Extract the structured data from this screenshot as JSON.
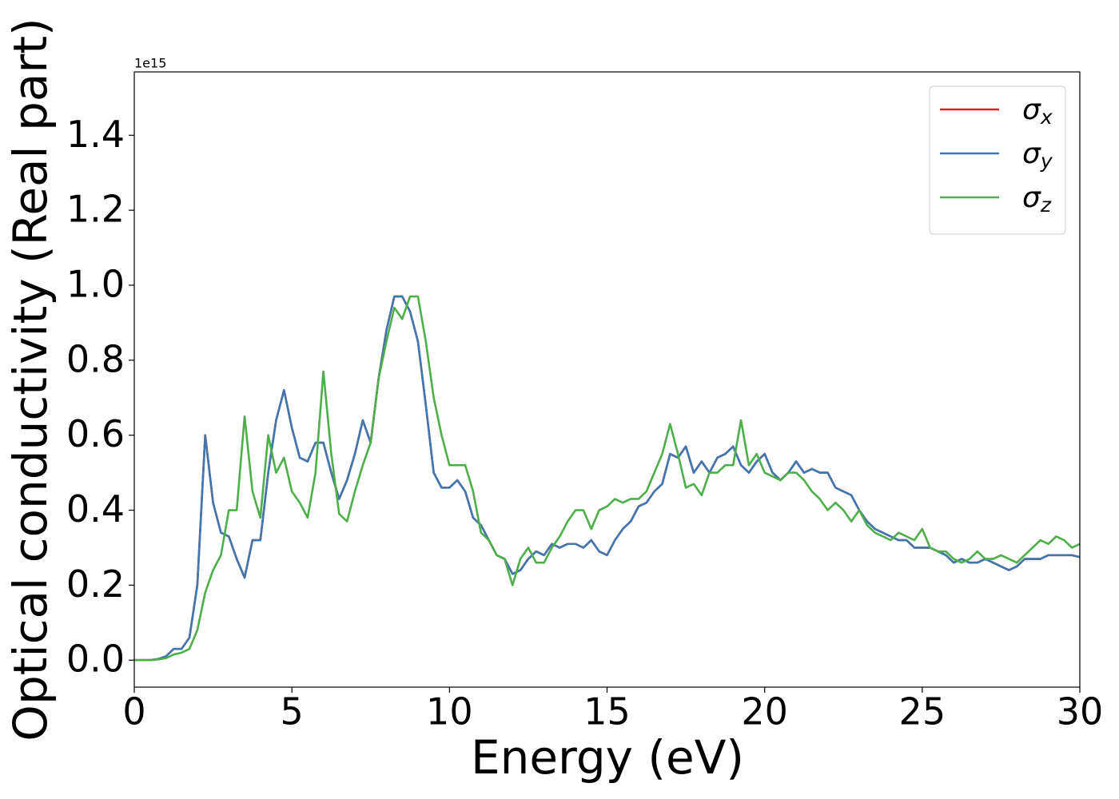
{
  "chart_data": {
    "type": "line",
    "xlabel": "Energy (eV)",
    "ylabel": "Optical conductivity (Real part)",
    "offset_label": "1e15",
    "x": [
      0,
      0.25,
      0.5,
      0.75,
      1,
      1.25,
      1.5,
      1.75,
      2,
      2.25,
      2.5,
      2.75,
      3,
      3.25,
      3.5,
      3.75,
      4,
      4.25,
      4.5,
      4.75,
      5,
      5.25,
      5.5,
      5.75,
      6,
      6.25,
      6.5,
      6.75,
      7,
      7.25,
      7.5,
      7.75,
      8,
      8.25,
      8.5,
      8.75,
      9,
      9.25,
      9.5,
      9.75,
      10,
      10.25,
      10.5,
      10.75,
      11,
      11.25,
      11.5,
      11.75,
      12,
      12.25,
      12.5,
      12.75,
      13,
      13.25,
      13.5,
      13.75,
      14,
      14.25,
      14.5,
      14.75,
      15,
      15.25,
      15.5,
      15.75,
      16,
      16.25,
      16.5,
      16.75,
      17,
      17.25,
      17.5,
      17.75,
      18,
      18.25,
      18.5,
      18.75,
      19,
      19.25,
      19.5,
      19.75,
      20,
      20.25,
      20.5,
      20.75,
      21,
      21.25,
      21.5,
      21.75,
      22,
      22.25,
      22.5,
      22.75,
      23,
      23.25,
      23.5,
      23.75,
      24,
      24.25,
      24.5,
      24.75,
      25,
      25.25,
      25.5,
      25.75,
      26,
      26.25,
      26.5,
      26.75,
      27,
      27.25,
      27.5,
      27.75,
      28,
      28.25,
      28.5,
      28.75,
      29,
      29.25,
      29.5,
      29.75,
      30
    ],
    "series": [
      {
        "name": "σx",
        "color": "#e41a1c",
        "values": [
          0,
          0,
          0,
          0.003,
          0.01,
          0.03,
          0.03,
          0.06,
          0.2,
          0.6,
          0.42,
          0.34,
          0.33,
          0.27,
          0.22,
          0.32,
          0.32,
          0.5,
          0.64,
          0.72,
          0.62,
          0.54,
          0.53,
          0.58,
          0.58,
          0.5,
          0.43,
          0.48,
          0.55,
          0.64,
          0.58,
          0.75,
          0.88,
          0.97,
          0.97,
          0.93,
          0.85,
          0.68,
          0.5,
          0.46,
          0.46,
          0.48,
          0.45,
          0.38,
          0.36,
          0.32,
          0.28,
          0.27,
          0.23,
          0.24,
          0.27,
          0.29,
          0.28,
          0.31,
          0.3,
          0.31,
          0.31,
          0.3,
          0.32,
          0.29,
          0.28,
          0.32,
          0.35,
          0.37,
          0.41,
          0.42,
          0.45,
          0.47,
          0.55,
          0.54,
          0.57,
          0.5,
          0.53,
          0.5,
          0.54,
          0.55,
          0.57,
          0.52,
          0.5,
          0.53,
          0.55,
          0.5,
          0.48,
          0.5,
          0.53,
          0.5,
          0.51,
          0.5,
          0.5,
          0.46,
          0.45,
          0.44,
          0.4,
          0.37,
          0.35,
          0.34,
          0.33,
          0.32,
          0.32,
          0.3,
          0.3,
          0.3,
          0.29,
          0.28,
          0.26,
          0.27,
          0.26,
          0.26,
          0.27,
          0.26,
          0.25,
          0.24,
          0.25,
          0.27,
          0.27,
          0.27,
          0.28,
          0.28,
          0.28,
          0.28,
          0.275
        ]
      },
      {
        "name": "σy",
        "color": "#3f77b0",
        "values": [
          0,
          0,
          0,
          0.003,
          0.01,
          0.03,
          0.03,
          0.06,
          0.2,
          0.6,
          0.42,
          0.34,
          0.33,
          0.27,
          0.22,
          0.32,
          0.32,
          0.5,
          0.64,
          0.72,
          0.62,
          0.54,
          0.53,
          0.58,
          0.58,
          0.5,
          0.43,
          0.48,
          0.55,
          0.64,
          0.58,
          0.75,
          0.88,
          0.97,
          0.97,
          0.93,
          0.85,
          0.68,
          0.5,
          0.46,
          0.46,
          0.48,
          0.45,
          0.38,
          0.36,
          0.32,
          0.28,
          0.27,
          0.23,
          0.24,
          0.27,
          0.29,
          0.28,
          0.31,
          0.3,
          0.31,
          0.31,
          0.3,
          0.32,
          0.29,
          0.28,
          0.32,
          0.35,
          0.37,
          0.41,
          0.42,
          0.45,
          0.47,
          0.55,
          0.54,
          0.57,
          0.5,
          0.53,
          0.5,
          0.54,
          0.55,
          0.57,
          0.52,
          0.5,
          0.53,
          0.55,
          0.5,
          0.48,
          0.5,
          0.53,
          0.5,
          0.51,
          0.5,
          0.5,
          0.46,
          0.45,
          0.44,
          0.4,
          0.37,
          0.35,
          0.34,
          0.33,
          0.32,
          0.32,
          0.3,
          0.3,
          0.3,
          0.29,
          0.28,
          0.26,
          0.27,
          0.26,
          0.26,
          0.27,
          0.26,
          0.25,
          0.24,
          0.25,
          0.27,
          0.27,
          0.27,
          0.28,
          0.28,
          0.28,
          0.28,
          0.275
        ]
      },
      {
        "name": "σz",
        "color": "#4daf4a",
        "values": [
          0,
          0,
          0,
          0.002,
          0.005,
          0.015,
          0.02,
          0.03,
          0.08,
          0.18,
          0.24,
          0.28,
          0.4,
          0.4,
          0.65,
          0.45,
          0.38,
          0.6,
          0.5,
          0.54,
          0.45,
          0.42,
          0.38,
          0.5,
          0.77,
          0.55,
          0.39,
          0.37,
          0.45,
          0.52,
          0.58,
          0.75,
          0.85,
          0.94,
          0.91,
          0.97,
          0.97,
          0.85,
          0.7,
          0.6,
          0.52,
          0.52,
          0.52,
          0.45,
          0.34,
          0.32,
          0.28,
          0.27,
          0.2,
          0.27,
          0.3,
          0.26,
          0.26,
          0.3,
          0.33,
          0.37,
          0.4,
          0.4,
          0.35,
          0.4,
          0.41,
          0.43,
          0.42,
          0.43,
          0.43,
          0.45,
          0.5,
          0.55,
          0.63,
          0.55,
          0.46,
          0.47,
          0.44,
          0.5,
          0.5,
          0.52,
          0.52,
          0.64,
          0.52,
          0.55,
          0.5,
          0.49,
          0.48,
          0.5,
          0.5,
          0.48,
          0.45,
          0.43,
          0.4,
          0.42,
          0.4,
          0.37,
          0.4,
          0.36,
          0.34,
          0.33,
          0.32,
          0.34,
          0.33,
          0.32,
          0.35,
          0.3,
          0.29,
          0.29,
          0.27,
          0.26,
          0.27,
          0.29,
          0.27,
          0.27,
          0.28,
          0.27,
          0.26,
          0.28,
          0.3,
          0.32,
          0.31,
          0.33,
          0.32,
          0.3,
          0.31
        ]
      }
    ],
    "xlim": [
      0,
      30
    ],
    "xticks": [
      0,
      5,
      10,
      15,
      20,
      25,
      30
    ],
    "ylim": [
      -0.072,
      1.569
    ],
    "yticks": [
      {
        "value": 0,
        "label": "0.0"
      },
      0.2,
      0.4,
      0.6,
      0.8,
      {
        "value": 1,
        "label": "1.0"
      },
      1.2,
      1.4
    ],
    "grid": false,
    "legend": "upper right"
  }
}
